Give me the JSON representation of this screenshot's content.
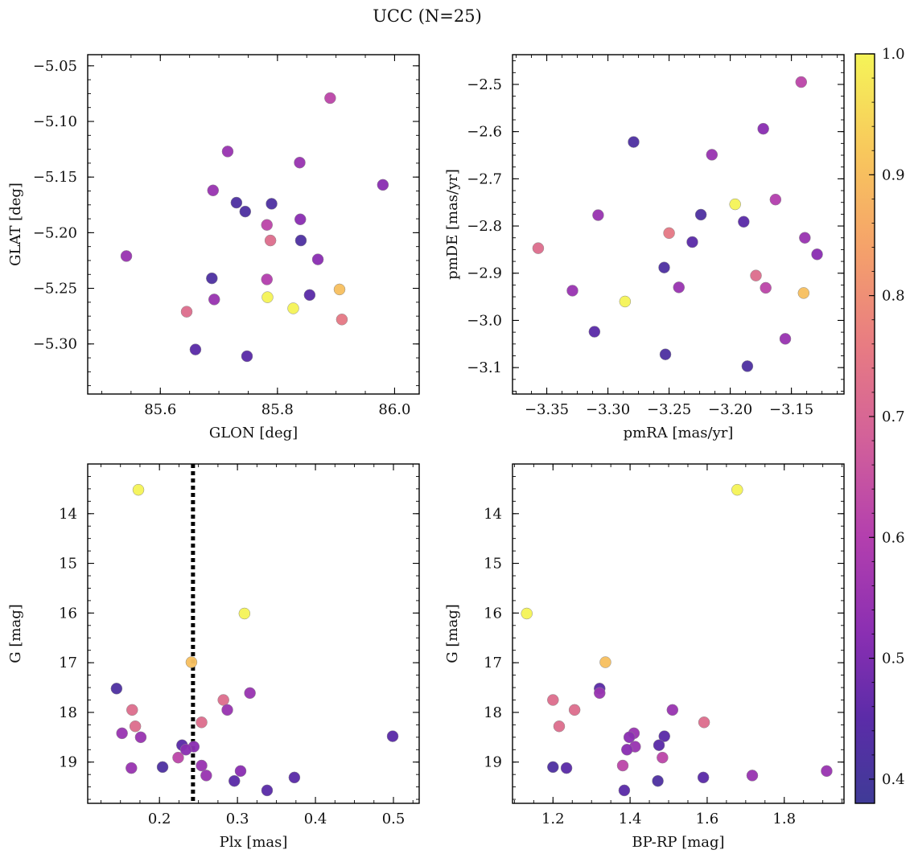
{
  "figure": {
    "title": "UCC (N=25)"
  },
  "chart_data": [
    {
      "type": "scatter",
      "panel": "top-left",
      "xlabel": "GLON [deg]",
      "ylabel": "GLAT [deg]",
      "xlim": [
        85.476,
        86.042
      ],
      "ylim": [
        -5.345,
        -5.04
      ],
      "xticks": [
        85.6,
        85.8,
        86.0
      ],
      "xtick_labels": [
        "85.6",
        "85.8",
        "86.0"
      ],
      "yticks": [
        -5.05,
        -5.1,
        -5.15,
        -5.2,
        -5.25,
        -5.3
      ],
      "ytick_labels": [
        "−5.05",
        "−5.10",
        "−5.15",
        "−5.20",
        "−5.25",
        "−5.30"
      ],
      "y_inverted": false,
      "points": [
        {
          "x": 85.89,
          "y": -5.079,
          "c": 0.62
        },
        {
          "x": 85.715,
          "y": -5.127,
          "c": 0.55
        },
        {
          "x": 85.838,
          "y": -5.137,
          "c": 0.55
        },
        {
          "x": 85.98,
          "y": -5.157,
          "c": 0.52
        },
        {
          "x": 85.69,
          "y": -5.162,
          "c": 0.55
        },
        {
          "x": 85.73,
          "y": -5.173,
          "c": 0.42
        },
        {
          "x": 85.79,
          "y": -5.174,
          "c": 0.42
        },
        {
          "x": 85.745,
          "y": -5.181,
          "c": 0.42
        },
        {
          "x": 85.839,
          "y": -5.188,
          "c": 0.52
        },
        {
          "x": 85.782,
          "y": -5.193,
          "c": 0.62
        },
        {
          "x": 85.788,
          "y": -5.207,
          "c": 0.72
        },
        {
          "x": 85.84,
          "y": -5.207,
          "c": 0.42
        },
        {
          "x": 85.542,
          "y": -5.221,
          "c": 0.55
        },
        {
          "x": 85.869,
          "y": -5.224,
          "c": 0.52
        },
        {
          "x": 85.688,
          "y": -5.241,
          "c": 0.42
        },
        {
          "x": 85.782,
          "y": -5.242,
          "c": 0.6
        },
        {
          "x": 85.906,
          "y": -5.251,
          "c": 0.9
        },
        {
          "x": 85.855,
          "y": -5.256,
          "c": 0.45
        },
        {
          "x": 85.783,
          "y": -5.258,
          "c": 1.0
        },
        {
          "x": 85.692,
          "y": -5.26,
          "c": 0.55
        },
        {
          "x": 85.827,
          "y": -5.268,
          "c": 1.0
        },
        {
          "x": 85.645,
          "y": -5.271,
          "c": 0.72
        },
        {
          "x": 85.91,
          "y": -5.278,
          "c": 0.75
        },
        {
          "x": 85.66,
          "y": -5.305,
          "c": 0.45
        },
        {
          "x": 85.748,
          "y": -5.311,
          "c": 0.45
        }
      ]
    },
    {
      "type": "scatter",
      "panel": "top-right",
      "xlabel": "pmRA [mas/yr]",
      "ylabel": "pmDE [mas/yr]",
      "xlim": [
        -3.378,
        -3.107
      ],
      "ylim": [
        -3.156,
        -2.437
      ],
      "xticks": [
        -3.35,
        -3.3,
        -3.25,
        -3.2,
        -3.15
      ],
      "xtick_labels": [
        "−3.35",
        "−3.30",
        "−3.25",
        "−3.20",
        "−3.15"
      ],
      "yticks": [
        -2.5,
        -2.6,
        -2.7,
        -2.8,
        -2.9,
        -3.0,
        -3.1
      ],
      "ytick_labels": [
        "−2.5",
        "−2.6",
        "−2.7",
        "−2.8",
        "−2.9",
        "−3.0",
        "−3.1"
      ],
      "y_inverted": false,
      "points": [
        {
          "x": -3.142,
          "y": -2.495,
          "c": 0.62
        },
        {
          "x": -3.173,
          "y": -2.594,
          "c": 0.52
        },
        {
          "x": -3.279,
          "y": -2.622,
          "c": 0.42
        },
        {
          "x": -3.215,
          "y": -2.649,
          "c": 0.55
        },
        {
          "x": -3.163,
          "y": -2.744,
          "c": 0.6
        },
        {
          "x": -3.196,
          "y": -2.754,
          "c": 1.0
        },
        {
          "x": -3.224,
          "y": -2.776,
          "c": 0.42
        },
        {
          "x": -3.308,
          "y": -2.777,
          "c": 0.55
        },
        {
          "x": -3.189,
          "y": -2.791,
          "c": 0.45
        },
        {
          "x": -3.25,
          "y": -2.815,
          "c": 0.75
        },
        {
          "x": -3.139,
          "y": -2.825,
          "c": 0.55
        },
        {
          "x": -3.231,
          "y": -2.834,
          "c": 0.45
        },
        {
          "x": -3.357,
          "y": -2.847,
          "c": 0.72
        },
        {
          "x": -3.129,
          "y": -2.86,
          "c": 0.52
        },
        {
          "x": -3.254,
          "y": -2.888,
          "c": 0.42
        },
        {
          "x": -3.179,
          "y": -2.905,
          "c": 0.72
        },
        {
          "x": -3.242,
          "y": -2.93,
          "c": 0.55
        },
        {
          "x": -3.171,
          "y": -2.931,
          "c": 0.62
        },
        {
          "x": -3.329,
          "y": -2.937,
          "c": 0.55
        },
        {
          "x": -3.14,
          "y": -2.942,
          "c": 0.9
        },
        {
          "x": -3.286,
          "y": -2.96,
          "c": 1.0
        },
        {
          "x": -3.311,
          "y": -3.024,
          "c": 0.45
        },
        {
          "x": -3.155,
          "y": -3.039,
          "c": 0.55
        },
        {
          "x": -3.253,
          "y": -3.072,
          "c": 0.42
        },
        {
          "x": -3.186,
          "y": -3.097,
          "c": 0.42
        }
      ]
    },
    {
      "type": "scatter",
      "panel": "bottom-left",
      "xlabel": "Plx [mas]",
      "ylabel": "G [mag]",
      "xlim": [
        0.108,
        0.533
      ],
      "ylim": [
        19.83,
        13.0
      ],
      "xticks": [
        0.2,
        0.3,
        0.4,
        0.5
      ],
      "xtick_labels": [
        "0.2",
        "0.3",
        "0.4",
        "0.5"
      ],
      "yticks": [
        14,
        15,
        16,
        17,
        18,
        19
      ],
      "ytick_labels": [
        "14",
        "15",
        "16",
        "17",
        "18",
        "19"
      ],
      "y_inverted": true,
      "vline": {
        "x": 0.243,
        "style": "dotted",
        "color": "#000000"
      },
      "points": [
        {
          "x": 0.173,
          "y": 13.52,
          "c": 1.0
        },
        {
          "x": 0.309,
          "y": 16.01,
          "c": 1.0
        },
        {
          "x": 0.241,
          "y": 16.99,
          "c": 0.9
        },
        {
          "x": 0.145,
          "y": 17.52,
          "c": 0.42
        },
        {
          "x": 0.316,
          "y": 17.61,
          "c": 0.55
        },
        {
          "x": 0.282,
          "y": 17.75,
          "c": 0.72
        },
        {
          "x": 0.165,
          "y": 17.95,
          "c": 0.72
        },
        {
          "x": 0.287,
          "y": 17.95,
          "c": 0.55
        },
        {
          "x": 0.254,
          "y": 18.2,
          "c": 0.72
        },
        {
          "x": 0.169,
          "y": 18.28,
          "c": 0.72
        },
        {
          "x": 0.152,
          "y": 18.42,
          "c": 0.55
        },
        {
          "x": 0.176,
          "y": 18.5,
          "c": 0.55
        },
        {
          "x": 0.499,
          "y": 18.48,
          "c": 0.45
        },
        {
          "x": 0.229,
          "y": 18.66,
          "c": 0.45
        },
        {
          "x": 0.244,
          "y": 18.69,
          "c": 0.52
        },
        {
          "x": 0.234,
          "y": 18.75,
          "c": 0.52
        },
        {
          "x": 0.224,
          "y": 18.91,
          "c": 0.62
        },
        {
          "x": 0.254,
          "y": 19.07,
          "c": 0.55
        },
        {
          "x": 0.204,
          "y": 19.1,
          "c": 0.42
        },
        {
          "x": 0.164,
          "y": 19.12,
          "c": 0.55
        },
        {
          "x": 0.304,
          "y": 19.18,
          "c": 0.52
        },
        {
          "x": 0.26,
          "y": 19.27,
          "c": 0.55
        },
        {
          "x": 0.373,
          "y": 19.31,
          "c": 0.45
        },
        {
          "x": 0.296,
          "y": 19.38,
          "c": 0.45
        },
        {
          "x": 0.338,
          "y": 19.57,
          "c": 0.45
        }
      ]
    },
    {
      "type": "scatter",
      "panel": "bottom-right",
      "xlabel": "BP-RP [mag]",
      "ylabel": "G [mag]",
      "xlim": [
        1.095,
        1.955
      ],
      "ylim": [
        19.83,
        13.0
      ],
      "xticks": [
        1.2,
        1.4,
        1.6,
        1.8
      ],
      "xtick_labels": [
        "1.2",
        "1.4",
        "1.6",
        "1.8"
      ],
      "yticks": [
        14,
        15,
        16,
        17,
        18,
        19
      ],
      "ytick_labels": [
        "14",
        "15",
        "16",
        "17",
        "18",
        "19"
      ],
      "y_inverted": true,
      "points": [
        {
          "x": 1.678,
          "y": 13.52,
          "c": 1.0
        },
        {
          "x": 1.132,
          "y": 16.01,
          "c": 1.0
        },
        {
          "x": 1.336,
          "y": 16.99,
          "c": 0.9
        },
        {
          "x": 1.321,
          "y": 17.52,
          "c": 0.45
        },
        {
          "x": 1.321,
          "y": 17.61,
          "c": 0.55
        },
        {
          "x": 1.2,
          "y": 17.75,
          "c": 0.72
        },
        {
          "x": 1.256,
          "y": 17.95,
          "c": 0.72
        },
        {
          "x": 1.51,
          "y": 17.95,
          "c": 0.55
        },
        {
          "x": 1.592,
          "y": 18.2,
          "c": 0.72
        },
        {
          "x": 1.216,
          "y": 18.28,
          "c": 0.72
        },
        {
          "x": 1.41,
          "y": 18.42,
          "c": 0.55
        },
        {
          "x": 1.398,
          "y": 18.5,
          "c": 0.52
        },
        {
          "x": 1.489,
          "y": 18.48,
          "c": 0.45
        },
        {
          "x": 1.475,
          "y": 18.66,
          "c": 0.45
        },
        {
          "x": 1.413,
          "y": 18.69,
          "c": 0.55
        },
        {
          "x": 1.392,
          "y": 18.75,
          "c": 0.52
        },
        {
          "x": 1.484,
          "y": 18.91,
          "c": 0.62
        },
        {
          "x": 1.381,
          "y": 19.07,
          "c": 0.62
        },
        {
          "x": 1.2,
          "y": 19.1,
          "c": 0.42
        },
        {
          "x": 1.235,
          "y": 19.12,
          "c": 0.45
        },
        {
          "x": 1.91,
          "y": 19.18,
          "c": 0.55
        },
        {
          "x": 1.717,
          "y": 19.27,
          "c": 0.55
        },
        {
          "x": 1.59,
          "y": 19.31,
          "c": 0.45
        },
        {
          "x": 1.472,
          "y": 19.38,
          "c": 0.42
        },
        {
          "x": 1.385,
          "y": 19.57,
          "c": 0.45
        }
      ]
    }
  ],
  "colorbar": {
    "colormap": "plasma",
    "range": [
      0.38,
      1.0
    ],
    "ticks": [
      0.4,
      0.5,
      0.6,
      0.7,
      0.8,
      0.9,
      1.0
    ],
    "tick_labels": [
      "0.4",
      "0.5",
      "0.6",
      "0.7",
      "0.8",
      "0.9",
      "1.0"
    ],
    "colormap_stops": [
      {
        "v": 0.38,
        "color": "#3f3b97"
      },
      {
        "v": 0.45,
        "color": "#5b2ca8"
      },
      {
        "v": 0.52,
        "color": "#8a2fb2"
      },
      {
        "v": 0.6,
        "color": "#b33fae"
      },
      {
        "v": 0.68,
        "color": "#d2609a"
      },
      {
        "v": 0.76,
        "color": "#e87c82"
      },
      {
        "v": 0.84,
        "color": "#f5a26a"
      },
      {
        "v": 0.92,
        "color": "#f8c85c"
      },
      {
        "v": 1.0,
        "color": "#f5f458"
      }
    ]
  }
}
